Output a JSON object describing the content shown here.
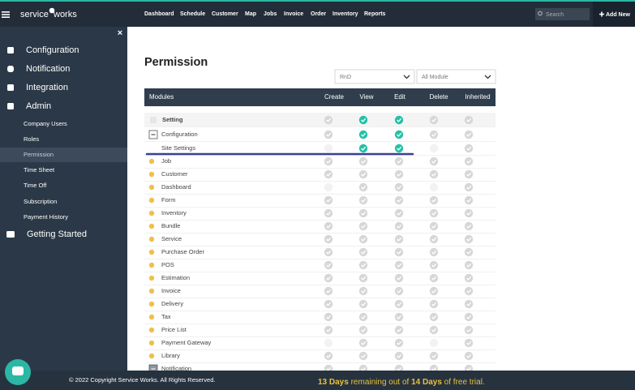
{
  "header": {
    "logo_left": "service",
    "logo_right": "works",
    "nav": [
      "Dashboard",
      "Schedule",
      "Customer",
      "Map",
      "Jobs",
      "Invoice",
      "Order",
      "Inventory",
      "Reports"
    ],
    "search_placeholder": "Search",
    "add_new": "Add New"
  },
  "sidebar": {
    "close": "×",
    "menu": [
      "Configuration",
      "Notification",
      "Integration",
      "Admin"
    ],
    "admin_items": [
      "Company Users",
      "Roles",
      "Permission",
      "Time Sheet",
      "Time Off",
      "Subscription",
      "Payment History"
    ],
    "getting_started": "Getting Started"
  },
  "page": {
    "title": "Permission",
    "filters": [
      "RnD",
      "All Module"
    ],
    "table": {
      "columns": [
        "Modules",
        "Create",
        "View",
        "Edit",
        "Delete",
        "Inherited"
      ],
      "rows": [
        "Setting",
        "Configuration",
        "Site Settings",
        "Job",
        "Customer",
        "Dashboard",
        "Form",
        "Inventory",
        "Bundle",
        "Service",
        "Purchase Order",
        "POS",
        "Estimation",
        "Invoice",
        "Delivery",
        "Tax",
        "Price List",
        "Payment Gateway",
        "Library",
        "Notification"
      ]
    }
  },
  "footer": {
    "copyright": "© 2022 Copyright Service Works. All Rights Reserved.",
    "trial": [
      "13 Days",
      " remaining out of ",
      "14 Days",
      " of free trial."
    ]
  }
}
